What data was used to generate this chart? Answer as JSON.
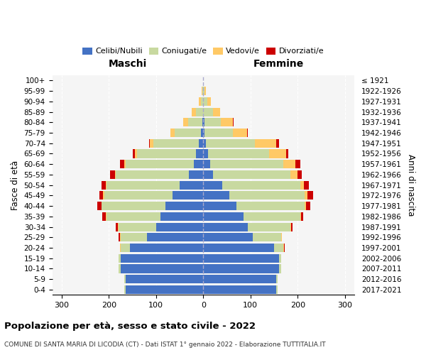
{
  "age_groups": [
    "0-4",
    "5-9",
    "10-14",
    "15-19",
    "20-24",
    "25-29",
    "30-34",
    "35-39",
    "40-44",
    "45-49",
    "50-54",
    "55-59",
    "60-64",
    "65-69",
    "70-74",
    "75-79",
    "80-84",
    "85-89",
    "90-94",
    "95-99",
    "100+"
  ],
  "birth_years": [
    "2017-2021",
    "2012-2016",
    "2007-2011",
    "2002-2006",
    "1997-2001",
    "1992-1996",
    "1987-1991",
    "1982-1986",
    "1977-1981",
    "1972-1976",
    "1967-1971",
    "1962-1966",
    "1957-1961",
    "1952-1956",
    "1947-1951",
    "1942-1946",
    "1937-1941",
    "1932-1936",
    "1927-1931",
    "1922-1926",
    "≤ 1921"
  ],
  "maschi": {
    "celibi": [
      165,
      165,
      175,
      175,
      155,
      120,
      100,
      90,
      80,
      65,
      50,
      30,
      20,
      15,
      10,
      5,
      2,
      0,
      0,
      0,
      0
    ],
    "coniugati": [
      2,
      2,
      5,
      5,
      20,
      55,
      80,
      115,
      135,
      145,
      155,
      155,
      145,
      125,
      95,
      55,
      30,
      15,
      5,
      2,
      0
    ],
    "vedovi": [
      0,
      0,
      0,
      0,
      1,
      2,
      1,
      1,
      1,
      2,
      2,
      2,
      3,
      5,
      8,
      10,
      10,
      10,
      5,
      2,
      0
    ],
    "divorziati": [
      0,
      0,
      0,
      0,
      1,
      2,
      5,
      8,
      8,
      8,
      8,
      10,
      8,
      5,
      2,
      0,
      0,
      0,
      0,
      0,
      0
    ]
  },
  "femmine": {
    "nubili": [
      155,
      155,
      160,
      160,
      150,
      105,
      95,
      85,
      70,
      55,
      40,
      20,
      15,
      10,
      5,
      3,
      2,
      0,
      0,
      0,
      0
    ],
    "coniugate": [
      2,
      2,
      5,
      5,
      20,
      60,
      90,
      120,
      145,
      160,
      165,
      165,
      155,
      130,
      105,
      60,
      35,
      20,
      8,
      2,
      0
    ],
    "vedove": [
      0,
      0,
      0,
      0,
      1,
      1,
      1,
      2,
      3,
      5,
      8,
      15,
      25,
      35,
      45,
      30,
      25,
      15,
      8,
      3,
      0
    ],
    "divorziate": [
      0,
      0,
      0,
      0,
      1,
      1,
      3,
      5,
      8,
      12,
      10,
      8,
      10,
      5,
      5,
      2,
      2,
      0,
      0,
      0,
      0
    ]
  },
  "colors": {
    "celibi_nubili": "#4472c4",
    "coniugati": "#c8d9a0",
    "vedovi": "#ffc966",
    "divorziati": "#cc0000"
  },
  "xlim": 320,
  "title": "Popolazione per età, sesso e stato civile - 2022",
  "subtitle": "COMUNE DI SANTA MARIA DI LICODIA (CT) - Dati ISTAT 1° gennaio 2022 - Elaborazione TUTTITALIA.IT",
  "ylabel": "Fasce di età",
  "ylabel_right": "Anni di nascita",
  "xlabel_maschi": "Maschi",
  "xlabel_femmine": "Femmine",
  "bg_color": "#f5f5f5",
  "legend_items": [
    "Celibi/Nubili",
    "Coniugati/e",
    "Vedovi/e",
    "Divorziati/e"
  ]
}
